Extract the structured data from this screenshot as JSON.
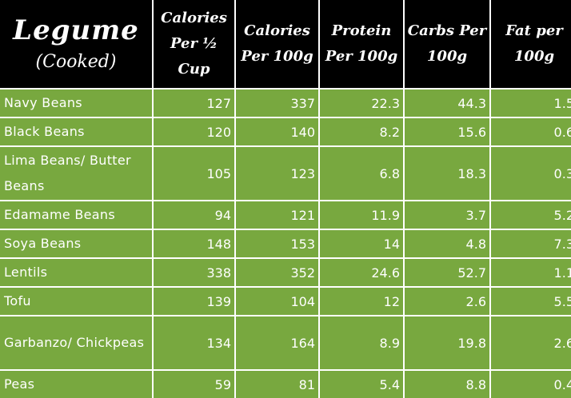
{
  "headers": {
    "legume_title": "Legume",
    "legume_sub": "(Cooked)",
    "cal_half_cup": "Calories Per ½ Cup",
    "cal_100g": "Calories Per 100g",
    "protein_100g": "Protein Per 100g",
    "carbs_100g": "Carbs Per 100g",
    "fat_100g": "Fat per 100g"
  },
  "rows": [
    {
      "name": "Navy Beans",
      "cal_half_cup": "127",
      "cal_100g": "337",
      "protein": "22.3",
      "carbs": "44.3",
      "fat": "1.5"
    },
    {
      "name": "Black Beans",
      "cal_half_cup": "120",
      "cal_100g": "140",
      "protein": "8.2",
      "carbs": "15.6",
      "fat": "0.6"
    },
    {
      "name": "Lima Beans/ Butter Beans",
      "cal_half_cup": "105",
      "cal_100g": "123",
      "protein": "6.8",
      "carbs": "18.3",
      "fat": "0.3"
    },
    {
      "name": "Edamame Beans",
      "cal_half_cup": "94",
      "cal_100g": "121",
      "protein": "11.9",
      "carbs": "3.7",
      "fat": "5.2"
    },
    {
      "name": "Soya Beans",
      "cal_half_cup": "148",
      "cal_100g": "153",
      "protein": "14",
      "carbs": "4.8",
      "fat": "7.3"
    },
    {
      "name": "Lentils",
      "cal_half_cup": "338",
      "cal_100g": "352",
      "protein": "24.6",
      "carbs": "52.7",
      "fat": "1.1"
    },
    {
      "name": "Tofu",
      "cal_half_cup": "139",
      "cal_100g": "104",
      "protein": "12",
      "carbs": "2.6",
      "fat": "5.5"
    },
    {
      "name": "Garbanzo/ Chickpeas",
      "cal_half_cup": "134",
      "cal_100g": "164",
      "protein": "8.9",
      "carbs": "19.8",
      "fat": "2.6"
    },
    {
      "name": "Peas",
      "cal_half_cup": "59",
      "cal_100g": "81",
      "protein": "5.4",
      "carbs": "8.8",
      "fat": "0.4"
    }
  ],
  "colors": {
    "header_bg": "#000000",
    "row_bg": "#78a83f",
    "text": "#ffffff",
    "grid": "#ffffff"
  }
}
